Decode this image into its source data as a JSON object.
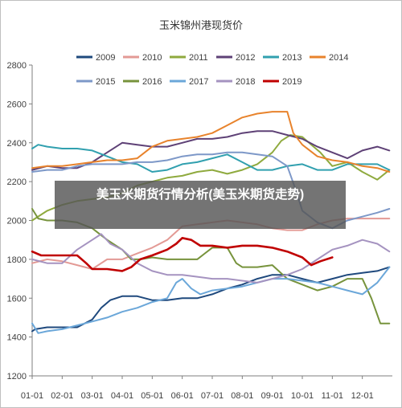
{
  "overlay_caption": "美玉米期货行情分析(美玉米期货走势)",
  "chart_data": {
    "type": "line",
    "title": "玉米锦州港现货价",
    "xlabel": "",
    "ylabel": "",
    "ylim": [
      1200,
      2800
    ],
    "yticks": [
      1200,
      1400,
      1600,
      1800,
      2000,
      2200,
      2400,
      2600,
      2800
    ],
    "xticks": [
      "01-01",
      "02-01",
      "03-01",
      "04-01",
      "05-01",
      "06-01",
      "07-01",
      "08-01",
      "09-01",
      "10-01",
      "11-01",
      "12-01"
    ],
    "grid": false,
    "legend_placement": "top",
    "series": [
      {
        "name": "2009",
        "color": "#1f497d",
        "x": [
          1,
          1.1,
          1.5,
          2,
          2.5,
          3,
          3.3,
          3.6,
          4,
          4.5,
          5,
          5.5,
          6,
          6.5,
          7,
          7.5,
          8,
          8.5,
          9,
          9.5,
          10,
          10.5,
          11,
          11.5,
          12,
          12.5,
          12.9
        ],
        "y": [
          1430,
          1440,
          1450,
          1450,
          1450,
          1490,
          1550,
          1590,
          1610,
          1610,
          1590,
          1590,
          1600,
          1600,
          1620,
          1650,
          1670,
          1700,
          1720,
          1720,
          1700,
          1680,
          1700,
          1720,
          1730,
          1740,
          1760
        ]
      },
      {
        "name": "2010",
        "color": "#e39a95",
        "x": [
          1,
          1.5,
          2,
          2.5,
          3,
          3.5,
          4,
          4.5,
          5,
          5.5,
          6,
          6.5,
          7,
          7.5,
          8,
          8.5,
          9,
          9.5,
          10,
          10.5,
          11,
          11.5,
          12,
          12.5,
          12.9
        ],
        "y": [
          1780,
          1800,
          1790,
          1770,
          1750,
          1800,
          1800,
          1830,
          1860,
          1900,
          1970,
          1980,
          1990,
          2000,
          1990,
          1980,
          1960,
          1950,
          1950,
          1980,
          2000,
          2010,
          2010,
          2010,
          2010
        ]
      },
      {
        "name": "2011",
        "color": "#8faa3e",
        "x": [
          1,
          1.5,
          2,
          2.5,
          3,
          3.5,
          4,
          4.5,
          5,
          5.5,
          6,
          6.5,
          7,
          7.5,
          8,
          8.5,
          9,
          9.3,
          9.6,
          10,
          10.3,
          10.6,
          11,
          11.5,
          12,
          12.5,
          12.9
        ],
        "y": [
          2000,
          2050,
          2080,
          2100,
          2110,
          2120,
          2140,
          2180,
          2200,
          2220,
          2230,
          2250,
          2260,
          2240,
          2260,
          2290,
          2350,
          2410,
          2440,
          2430,
          2390,
          2350,
          2280,
          2300,
          2250,
          2210,
          2260
        ]
      },
      {
        "name": "2012",
        "color": "#5e4176",
        "x": [
          1,
          1.5,
          2,
          2.5,
          3,
          3.5,
          4,
          4.5,
          5,
          5.5,
          6,
          6.5,
          7,
          7.5,
          8,
          8.5,
          9,
          9.5,
          10,
          10.5,
          11,
          11.5,
          12,
          12.5,
          12.9
        ],
        "y": [
          2260,
          2280,
          2270,
          2270,
          2300,
          2350,
          2400,
          2390,
          2380,
          2380,
          2400,
          2420,
          2420,
          2430,
          2450,
          2460,
          2460,
          2440,
          2420,
          2380,
          2350,
          2320,
          2360,
          2380,
          2360
        ]
      },
      {
        "name": "2013",
        "color": "#31a0af",
        "x": [
          1,
          1.2,
          1.5,
          2,
          2.5,
          3,
          3.5,
          4,
          4.5,
          5,
          5.5,
          6,
          6.5,
          7,
          7.5,
          8,
          8.5,
          9,
          9.5,
          10,
          10.5,
          11,
          11.5,
          12,
          12.5,
          12.9
        ],
        "y": [
          2370,
          2390,
          2380,
          2370,
          2370,
          2360,
          2330,
          2300,
          2290,
          2250,
          2260,
          2290,
          2300,
          2320,
          2340,
          2300,
          2260,
          2260,
          2280,
          2290,
          2260,
          2260,
          2290,
          2290,
          2290,
          2260
        ]
      },
      {
        "name": "2014",
        "color": "#e8832c",
        "x": [
          1,
          1.5,
          2,
          2.5,
          3,
          3.5,
          4,
          4.5,
          5,
          5.5,
          6,
          6.5,
          7,
          7.5,
          8,
          8.5,
          9,
          9.5,
          9.7,
          10,
          10.5,
          11,
          11.5,
          12,
          12.5,
          12.9
        ],
        "y": [
          2270,
          2280,
          2280,
          2290,
          2300,
          2310,
          2310,
          2320,
          2380,
          2410,
          2420,
          2430,
          2450,
          2490,
          2530,
          2550,
          2560,
          2560,
          2450,
          2390,
          2330,
          2310,
          2300,
          2280,
          2270,
          2250
        ]
      },
      {
        "name": "2015",
        "color": "#7d98c8",
        "x": [
          1,
          1.5,
          2,
          2.5,
          3,
          3.5,
          4,
          4.5,
          5,
          5.5,
          6,
          6.5,
          7,
          7.5,
          8,
          8.5,
          9,
          9.5,
          9.8,
          10,
          10.5,
          11,
          11.5,
          12,
          12.5,
          12.9
        ],
        "y": [
          2250,
          2260,
          2260,
          2280,
          2290,
          2290,
          2290,
          2300,
          2300,
          2310,
          2330,
          2340,
          2340,
          2350,
          2350,
          2340,
          2330,
          2280,
          2150,
          2050,
          1990,
          1960,
          2000,
          2020,
          2040,
          2060
        ]
      },
      {
        "name": "2016",
        "color": "#77933c",
        "x": [
          1,
          1.2,
          1.5,
          2,
          2.5,
          3,
          3.5,
          4,
          4.3,
          4.6,
          5,
          5.5,
          6,
          6.5,
          7,
          7.5,
          7.8,
          8,
          8.5,
          9,
          9.5,
          10,
          10.5,
          11,
          11.5,
          12,
          12.3,
          12.6,
          12.9
        ],
        "y": [
          2060,
          2010,
          2000,
          2000,
          1990,
          1960,
          1900,
          1850,
          1800,
          1800,
          1810,
          1800,
          1800,
          1800,
          1860,
          1860,
          1780,
          1760,
          1760,
          1770,
          1700,
          1670,
          1640,
          1660,
          1700,
          1700,
          1600,
          1470,
          1470
        ]
      },
      {
        "name": "2017",
        "color": "#6ba7d9",
        "x": [
          1,
          1.2,
          1.5,
          2,
          2.5,
          3,
          3.5,
          4,
          4.5,
          5,
          5.5,
          5.8,
          6,
          6.3,
          6.6,
          7,
          7.5,
          8,
          8.5,
          9,
          9.5,
          10,
          10.5,
          11,
          11.5,
          12,
          12.5,
          12.9
        ],
        "y": [
          1470,
          1420,
          1430,
          1440,
          1460,
          1480,
          1500,
          1530,
          1550,
          1580,
          1600,
          1680,
          1700,
          1650,
          1620,
          1640,
          1650,
          1660,
          1680,
          1700,
          1700,
          1690,
          1680,
          1660,
          1640,
          1620,
          1680,
          1760
        ]
      },
      {
        "name": "2018",
        "color": "#a593c0",
        "x": [
          1,
          1.5,
          2,
          2.5,
          3,
          3.3,
          3.6,
          4,
          4.5,
          5,
          5.5,
          6,
          6.5,
          7,
          7.5,
          8,
          8.5,
          9,
          9.5,
          10,
          10.5,
          11,
          11.5,
          12,
          12.5,
          12.9
        ],
        "y": [
          1800,
          1780,
          1780,
          1850,
          1900,
          1930,
          1880,
          1850,
          1780,
          1740,
          1720,
          1720,
          1710,
          1700,
          1700,
          1690,
          1680,
          1700,
          1720,
          1750,
          1800,
          1850,
          1870,
          1900,
          1880,
          1840
        ]
      },
      {
        "name": "2019",
        "color": "#c00000",
        "x": [
          1,
          1.3,
          1.6,
          2,
          2.5,
          2.8,
          3,
          3.5,
          4,
          4.3,
          4.6,
          5,
          5.5,
          5.8,
          6,
          6.3,
          6.6,
          7,
          7.5,
          8,
          8.5,
          9,
          9.5,
          10,
          10.3,
          10.6,
          11
        ],
        "y": [
          1840,
          1820,
          1820,
          1820,
          1820,
          1780,
          1750,
          1750,
          1740,
          1760,
          1800,
          1820,
          1850,
          1880,
          1910,
          1900,
          1870,
          1870,
          1860,
          1870,
          1870,
          1860,
          1840,
          1810,
          1770,
          1790,
          1810
        ]
      }
    ]
  }
}
